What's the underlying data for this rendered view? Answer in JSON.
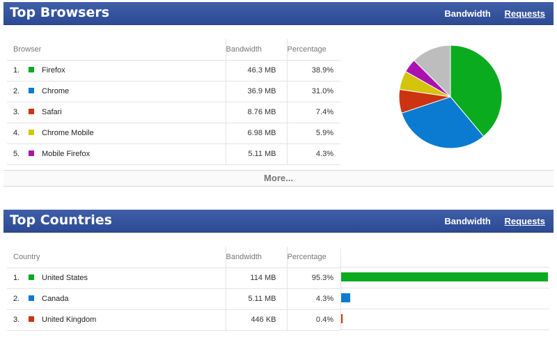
{
  "browsers_panel": {
    "title": "Top Browsers",
    "link_bandwidth": "Bandwidth",
    "link_requests": "Requests",
    "columns": [
      "Browser",
      "Bandwidth",
      "Percentage"
    ],
    "rows": [
      {
        "rank": "1.",
        "name": "Firefox",
        "bandwidth": "46.3 MB",
        "percentage": "38.9%",
        "color": "#0aab1f",
        "value": 38.9
      },
      {
        "rank": "2.",
        "name": "Chrome",
        "bandwidth": "36.9 MB",
        "percentage": "31.0%",
        "color": "#0a7bd0",
        "value": 31.0
      },
      {
        "rank": "3.",
        "name": "Safari",
        "bandwidth": "8.76 MB",
        "percentage": "7.4%",
        "color": "#cc3311",
        "value": 7.4
      },
      {
        "rank": "4.",
        "name": "Chrome Mobile",
        "bandwidth": "6.98 MB",
        "percentage": "5.9%",
        "color": "#d4c50a",
        "value": 5.9
      },
      {
        "rank": "5.",
        "name": "Mobile Firefox",
        "bandwidth": "5.11 MB",
        "percentage": "4.3%",
        "color": "#aa12b0",
        "value": 4.3
      }
    ],
    "more_label": "More..."
  },
  "countries_panel": {
    "title": "Top Countries",
    "link_bandwidth": "Bandwidth",
    "link_requests": "Requests",
    "columns": [
      "Country",
      "Bandwidth",
      "Percentage"
    ],
    "rows": [
      {
        "rank": "1.",
        "name": "United States",
        "bandwidth": "114 MB",
        "percentage": "95.3%",
        "color": "#0aab1f",
        "value": 95.3
      },
      {
        "rank": "2.",
        "name": "Canada",
        "bandwidth": "5.11 MB",
        "percentage": "4.3%",
        "color": "#0a7bd0",
        "value": 4.3
      },
      {
        "rank": "3.",
        "name": "United Kingdom",
        "bandwidth": "446 KB",
        "percentage": "0.4%",
        "color": "#cc3311",
        "value": 0.4
      }
    ]
  },
  "chart_data": [
    {
      "type": "pie",
      "categories": [
        "Firefox",
        "Chrome",
        "Safari",
        "Chrome Mobile",
        "Mobile Firefox",
        "Other"
      ],
      "values": [
        38.9,
        31.0,
        7.4,
        5.9,
        4.3,
        12.5
      ],
      "colors": [
        "#0aab1f",
        "#0a7bd0",
        "#cc3311",
        "#d4c50a",
        "#aa12b0",
        "#bdbdbd"
      ]
    },
    {
      "type": "bar",
      "categories": [
        "United States",
        "Canada",
        "United Kingdom"
      ],
      "values": [
        95.3,
        4.3,
        0.4
      ],
      "colors": [
        "#0aab1f",
        "#0a7bd0",
        "#cc3311"
      ]
    }
  ]
}
